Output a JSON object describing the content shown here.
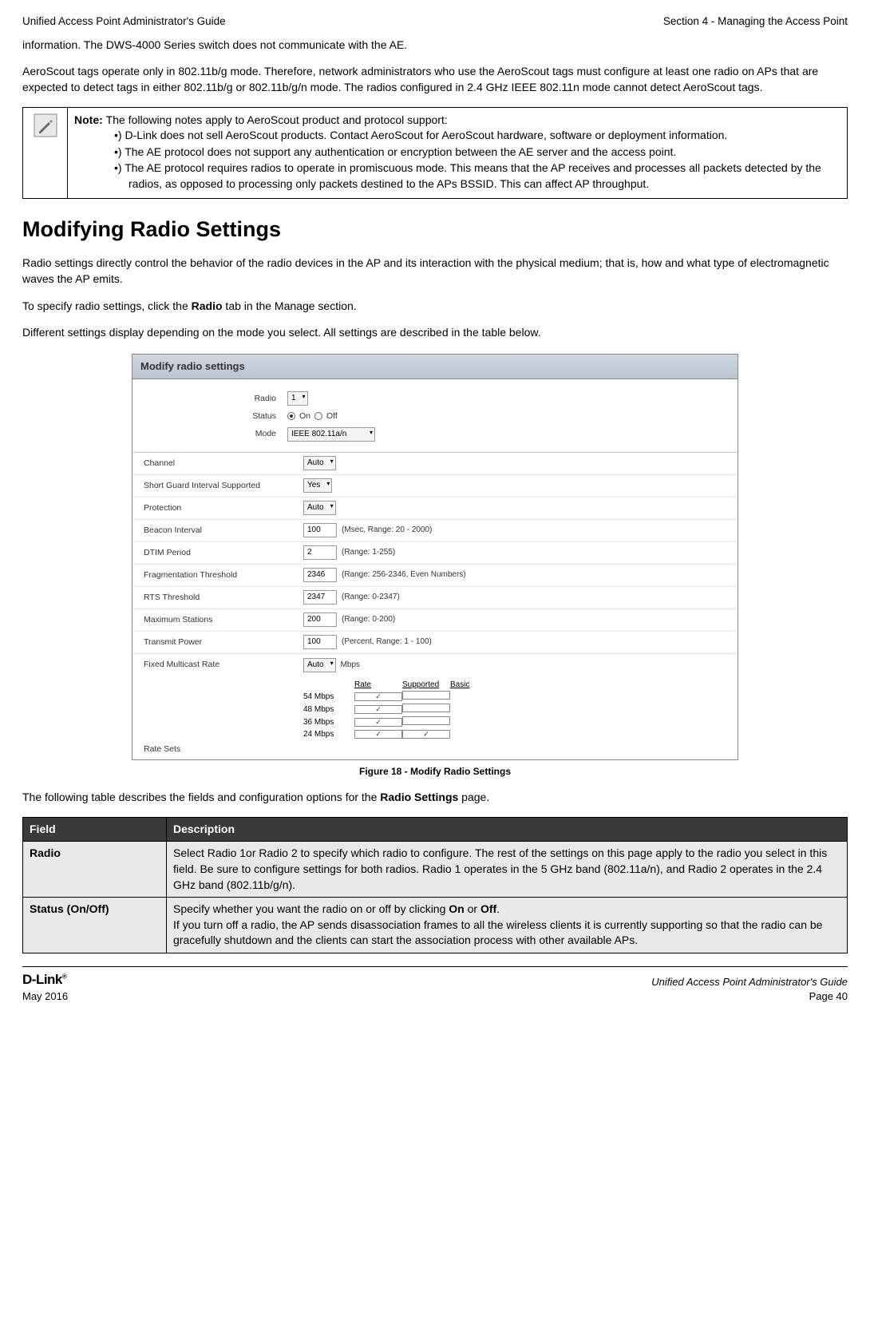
{
  "header": {
    "left": "Unified Access Point Administrator's Guide",
    "right": "Section 4 - Managing the Access Point"
  },
  "paragraphs": {
    "p1": "information. The DWS-4000 Series switch does not communicate with the AE.",
    "p2": "AeroScout tags operate only in 802.11b/g mode. Therefore, network administrators who use the AeroScout tags must configure at least one radio on APs that are expected to detect tags in either 802.11b/g or 802.11b/g/n mode. The radios configured in 2.4 GHz IEEE 802.11n mode cannot detect AeroScout tags.",
    "note_intro": "Note: ",
    "note_intro_rest": "The following notes apply to AeroScout product and protocol support:",
    "note1": "•)  D-Link does not sell AeroScout products. Contact AeroScout for AeroScout hardware, software or deployment information.",
    "note2": "•)  The AE protocol does not support any authentication or encryption between the AE server and the access point.",
    "note3": "•)  The AE protocol requires radios to operate in promiscuous mode. This means that the AP receives and processes all packets detected by the radios, as opposed to processing only packets destined to the APs BSSID. This can affect AP throughput.",
    "section_title": "Modifying Radio Settings",
    "p3": "Radio settings directly control the behavior of the radio devices in the AP and its interaction with the physical medium; that is, how and what type of electromagnetic waves the AP emits.",
    "p4a": "To specify radio settings, click the ",
    "p4b": "Radio",
    "p4c": " tab in the Manage section.",
    "p5": "Different settings display depending on the mode you select. All settings are described in the table below.",
    "p6a": "The following table describes the fields and configuration options for the ",
    "p6b": "Radio Settings",
    "p6c": " page."
  },
  "screenshot": {
    "title": "Modify radio settings",
    "labels": {
      "radio": "Radio",
      "status": "Status",
      "mode": "Mode",
      "channel": "Channel",
      "sgi": "Short Guard Interval Supported",
      "protection": "Protection",
      "beacon": "Beacon Interval",
      "dtim": "DTIM Period",
      "frag": "Fragmentation Threshold",
      "rts": "RTS Threshold",
      "maxsta": "Maximum Stations",
      "txpower": "Transmit Power",
      "fmr": "Fixed Multicast Rate",
      "ratesets": "Rate Sets"
    },
    "values": {
      "radio": "1",
      "on": "On",
      "off": "Off",
      "mode": "IEEE 802.11a/n",
      "channel": "Auto",
      "sgi": "Yes",
      "protection": "Auto",
      "beacon": "100",
      "beacon_range": "(Msec, Range: 20 - 2000)",
      "dtim": "2",
      "dtim_range": "(Range: 1-255)",
      "frag": "2346",
      "frag_range": "(Range: 256-2346, Even Numbers)",
      "rts": "2347",
      "rts_range": "(Range: 0-2347)",
      "maxsta": "200",
      "maxsta_range": "(Range: 0-200)",
      "txpower": "100",
      "txpower_range": "(Percent, Range: 1 - 100)",
      "fmr": "Auto",
      "fmr_suffix": "Mbps"
    },
    "rate_headers": {
      "blank": "",
      "rate": "Rate",
      "supported": "Supported",
      "basic": "Basic"
    },
    "rates": [
      {
        "label": "54 Mbps",
        "supported": true,
        "basic": false
      },
      {
        "label": "48 Mbps",
        "supported": true,
        "basic": false
      },
      {
        "label": "36 Mbps",
        "supported": true,
        "basic": false
      },
      {
        "label": "24 Mbps",
        "supported": true,
        "basic": true
      }
    ]
  },
  "figure_caption": "Figure 18 - Modify Radio Settings",
  "table": {
    "headers": {
      "field": "Field",
      "desc": "Description"
    },
    "rows": [
      {
        "field": "Radio",
        "desc": "Select Radio 1or Radio 2 to specify which radio to configure. The rest of the settings on this page apply to the radio you select in this field. Be sure to configure settings for both radios. Radio 1 operates in the 5 GHz band (802.11a/n), and Radio 2 operates in the 2.4 GHz band (802.11b/g/n)."
      },
      {
        "field": "Status (On/Off)",
        "desc_pre": "Specify whether you want the radio on or off by clicking ",
        "on": "On",
        "mid": " or ",
        "off": "Off",
        "desc_post": ".\nIf you turn off a radio, the AP sends disassociation frames to all the wireless clients it is currently supporting so that the radio can be gracefully shutdown and the clients can start the association process with other available APs."
      }
    ]
  },
  "footer": {
    "logo": "D-Link",
    "date": "May 2016",
    "right1": "Unified Access Point Administrator's Guide",
    "right2": "Page 40"
  }
}
